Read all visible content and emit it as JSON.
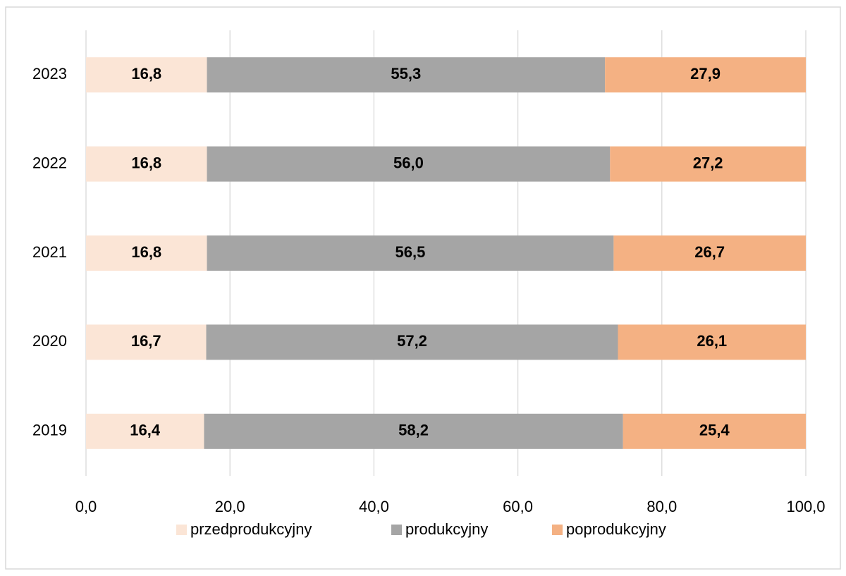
{
  "chart_data": {
    "type": "stacked_bar_horizontal",
    "categories": [
      "2019",
      "2020",
      "2021",
      "2022",
      "2023"
    ],
    "series": [
      {
        "name": "przedprodukcyjny",
        "color": "#fbe5d6",
        "values": [
          16.4,
          16.7,
          16.8,
          16.8,
          16.8
        ],
        "value_labels": [
          "16,4",
          "16,7",
          "16,8",
          "16,8",
          "16,8"
        ]
      },
      {
        "name": "produkcyjny",
        "color": "#a5a5a5",
        "values": [
          58.2,
          57.2,
          56.5,
          56.0,
          55.3
        ],
        "value_labels": [
          "58,2",
          "57,2",
          "56,5",
          "56,0",
          "55,3"
        ]
      },
      {
        "name": "poprodukcyjny",
        "color": "#f4b183",
        "values": [
          25.4,
          26.1,
          26.7,
          27.2,
          27.9
        ],
        "value_labels": [
          "25,4",
          "26,1",
          "26,7",
          "27,2",
          "27,9"
        ]
      }
    ],
    "xlim": [
      0,
      100
    ],
    "xticks": [
      {
        "value": 0,
        "label": "0,0"
      },
      {
        "value": 20,
        "label": "20,0"
      },
      {
        "value": 40,
        "label": "40,0"
      },
      {
        "value": 60,
        "label": "60,0"
      },
      {
        "value": 80,
        "label": "80,0"
      },
      {
        "value": 100,
        "label": "100,0"
      }
    ],
    "grid": true,
    "legend": "bottom"
  }
}
